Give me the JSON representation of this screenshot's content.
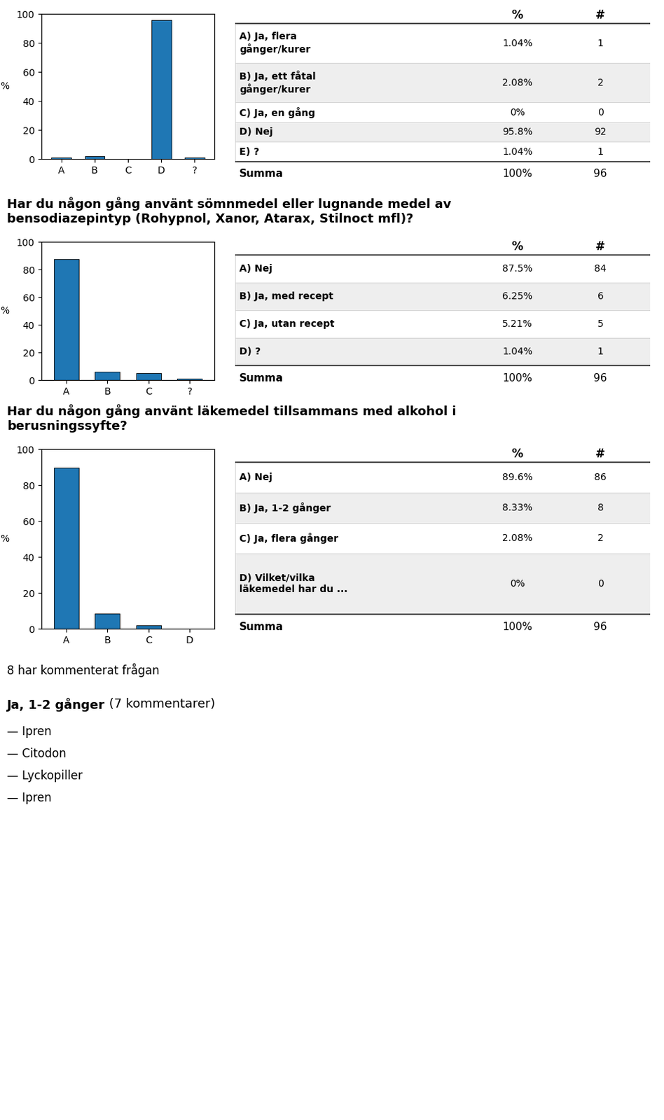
{
  "chart_data": [
    {
      "type": "bar",
      "categories": [
        "A",
        "B",
        "C",
        "D",
        "?"
      ],
      "values": [
        1.04,
        2.08,
        0,
        95.8,
        1.04
      ],
      "ylabel": "%",
      "ylim": [
        0,
        100
      ],
      "yticks": [
        0,
        20,
        40,
        60,
        80,
        100
      ],
      "table_headers": [
        "%",
        "#"
      ],
      "row_labels": [
        "A) Ja, flera\ngånger/kurer",
        "B) Ja, ett fåtal\ngånger/kurer",
        "C) Ja, en gång",
        "D) Nej",
        "E) ?"
      ],
      "value_labels": [
        "1.04%",
        "2.08%",
        "0%",
        "95.8%",
        "1.04%"
      ],
      "counts": [
        1,
        2,
        0,
        92,
        1
      ],
      "total_label": "Summa",
      "total_value": 100,
      "total_value_label": "100%",
      "total_count": 96
    },
    {
      "type": "bar",
      "title": "Har du någon gång använt sömnmedel eller lugnande medel av\nbensodiazepintyp (Rohypnol, Xanor, Atarax, Stilnoct mfl)?",
      "categories": [
        "A",
        "B",
        "C",
        "?"
      ],
      "values": [
        87.5,
        6.25,
        5.21,
        1.04
      ],
      "ylabel": "%",
      "ylim": [
        0,
        100
      ],
      "yticks": [
        0,
        20,
        40,
        60,
        80,
        100
      ],
      "table_headers": [
        "%",
        "#"
      ],
      "row_labels": [
        "A) Nej",
        "B) Ja, med recept",
        "C) Ja, utan recept",
        "D) ?"
      ],
      "value_labels": [
        "87.5%",
        "6.25%",
        "5.21%",
        "1.04%"
      ],
      "counts": [
        84,
        6,
        5,
        1
      ],
      "total_label": "Summa",
      "total_value": 100,
      "total_value_label": "100%",
      "total_count": 96
    },
    {
      "type": "bar",
      "title": "Har du någon gång använt läkemedel tillsammans med alkohol i\nberusningssyfte?",
      "categories": [
        "A",
        "B",
        "C",
        "D"
      ],
      "values": [
        89.6,
        8.33,
        2.08,
        0
      ],
      "ylabel": "%",
      "ylim": [
        0,
        100
      ],
      "yticks": [
        0,
        20,
        40,
        60,
        80,
        100
      ],
      "table_headers": [
        "%",
        "#"
      ],
      "row_labels": [
        "A) Nej",
        "B) Ja, 1-2 gånger",
        "C) Ja, flera gånger",
        "D) Vilket/vilka\nläkemedel har du ..."
      ],
      "value_labels": [
        "89.6%",
        "8.33%",
        "2.08%",
        "0%"
      ],
      "counts": [
        86,
        8,
        2,
        0
      ],
      "total_label": "Summa",
      "total_value": 100,
      "total_value_label": "100%",
      "total_count": 96
    }
  ],
  "comments": {
    "summary": "8 har kommenterat frågan",
    "group": "Ja, 1-2 gånger",
    "group_suffix": " (7 kommentarer)",
    "items": [
      "— Ipren",
      "— Citodon",
      "— Lyckopiller",
      "— Ipren"
    ]
  }
}
